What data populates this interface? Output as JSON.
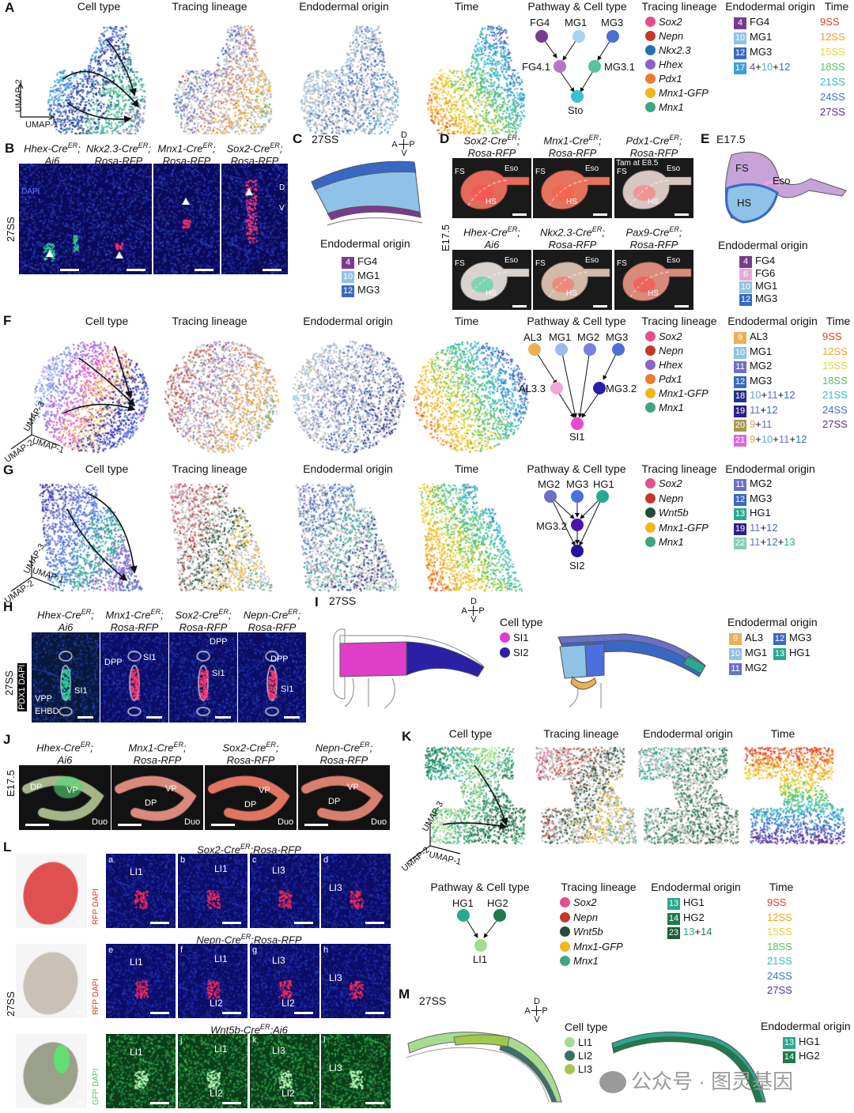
{
  "panels": {
    "A": "A",
    "B": "B",
    "C": "C",
    "D": "D",
    "E": "E",
    "F": "F",
    "G": "G",
    "H": "H",
    "I": "I",
    "J": "J",
    "K": "K",
    "L": "L",
    "M": "M"
  },
  "umap_titles": {
    "cell_type": "Cell type",
    "tracing_lineage": "Tracing lineage",
    "endodermal_origin": "Endodermal origin",
    "time": "Time",
    "pathway_cell_type": "Pathway & Cell type",
    "cell_type_legend": "Cell type"
  },
  "axes": {
    "umap1": "UMAP-1",
    "umap2": "UMAP-2",
    "umap3": "UMAP-3"
  },
  "time_labels": [
    "9SS",
    "12SS",
    "15SS",
    "18SS",
    "21SS",
    "24SS",
    "27SS"
  ],
  "time_colors": [
    "#e0402a",
    "#f1a21e",
    "#e9d53a",
    "#5bc25c",
    "#36b8c7",
    "#3c6fd0",
    "#5a2c9a"
  ],
  "A": {
    "pathway": {
      "nodes": [
        "FG4",
        "MG1",
        "MG3",
        "FG4.1",
        "MG3.1",
        "Sto"
      ]
    },
    "tracing": [
      {
        "label": "Sox2",
        "color": "#e0508e"
      },
      {
        "label": "Nepn",
        "color": "#c0392b"
      },
      {
        "label": "Nkx2.3",
        "color": "#2370b6"
      },
      {
        "label": "Hhex",
        "color": "#8a63c9"
      },
      {
        "label": "Pdx1",
        "color": "#ec7c2c"
      },
      {
        "label": "Mnx1-GFP",
        "color": "#f2b51a"
      },
      {
        "label": "Mnx1",
        "color": "#3fa582"
      }
    ],
    "origin": [
      {
        "num": "4",
        "label": "FG4",
        "color": "#7a3b8d"
      },
      {
        "num": "10",
        "label": "MG1",
        "color": "#8fc2e7"
      },
      {
        "num": "12",
        "label": "MG3",
        "color": "#3968c3"
      },
      {
        "num": "17",
        "label_parts": [
          "4",
          "+",
          "10",
          "+",
          "12"
        ],
        "color": "#3b9fd6"
      }
    ]
  },
  "B": {
    "titles": [
      {
        "l1": "Hhex-Cre",
        "sup": "ER",
        "l1b": ";",
        "l2": "Ai6"
      },
      {
        "l1": "Nkx2.3-Cre",
        "sup": "ER",
        "l1b": ";",
        "l2": "Rosa-RFP"
      },
      {
        "l1": "Mnx1-Cre",
        "sup": "ER",
        "l1b": ";",
        "l2": "Rosa-RFP"
      },
      {
        "l1": "Sox2-Cre",
        "sup": "ER",
        "l1b": ";",
        "l2": "Rosa-RFP"
      }
    ],
    "stage": "27SS",
    "dapi": "DAPI",
    "d": "D",
    "v": "V"
  },
  "C": {
    "stage": "27SS",
    "legend_title": "Endodermal origin",
    "origin": [
      {
        "num": "4",
        "label": "FG4",
        "color": "#7a3b8d"
      },
      {
        "num": "10",
        "label": "MG1",
        "color": "#8fc2e7"
      },
      {
        "num": "12",
        "label": "MG3",
        "color": "#3968c3"
      }
    ]
  },
  "orientation": {
    "d": "D",
    "v": "V",
    "a": "A",
    "p": "P"
  },
  "D": {
    "titles": [
      {
        "l1": "Sox2-Cre",
        "sup": "ER",
        "l2": "Rosa-RFP"
      },
      {
        "l1": "Mnx1-Cre",
        "sup": "ER",
        "l2": "Rosa-RFP"
      },
      {
        "l1": "Pdx1-Cre",
        "sup": "ER",
        "l2": "Rosa-RFP"
      },
      {
        "l1": "Hhex-Cre",
        "sup": "ER",
        "l2": "Ai6"
      },
      {
        "l1": "Nkx2.3-Cre",
        "sup": "ER",
        "l2": "Rosa-RFP"
      },
      {
        "l1": "Pax9-Cre",
        "sup": "ER",
        "l2": "Rosa-RFP"
      }
    ],
    "stage": "E17.5",
    "fs": "FS",
    "hs": "HS",
    "eso": "Eso",
    "tam": "Tam at E8.5"
  },
  "E": {
    "stage": "E17.5",
    "fs": "FS",
    "hs": "HS",
    "eso": "Eso",
    "legend_title": "Endodermal origin",
    "origin": [
      {
        "num": "4",
        "label": "FG4",
        "color": "#7a3b8d"
      },
      {
        "num": "6",
        "label": "FG6",
        "color": "#e8a9d6"
      },
      {
        "num": "10",
        "label": "MG1",
        "color": "#8fc2e7"
      },
      {
        "num": "12",
        "label": "MG3",
        "color": "#3968c3"
      }
    ]
  },
  "F": {
    "pathway": {
      "nodes": [
        "AL3",
        "MG1",
        "MG2",
        "MG3",
        "AL3.3",
        "MG3.2",
        "SI1"
      ]
    },
    "tracing": [
      {
        "label": "Sox2",
        "color": "#e0508e"
      },
      {
        "label": "Nepn",
        "color": "#c0392b"
      },
      {
        "label": "Hhex",
        "color": "#8a63c9"
      },
      {
        "label": "Pdx1",
        "color": "#ec7c2c"
      },
      {
        "label": "Mnx1-GFP",
        "color": "#f2b51a"
      },
      {
        "label": "Mnx1",
        "color": "#3fa582"
      }
    ],
    "origin": [
      {
        "num": "9",
        "label": "AL3",
        "color": "#eab054"
      },
      {
        "num": "10",
        "label": "MG1",
        "color": "#8fc2e7"
      },
      {
        "num": "11",
        "label": "MG2",
        "color": "#6a6fc8"
      },
      {
        "num": "12",
        "label": "MG3",
        "color": "#3968c3"
      },
      {
        "num": "18",
        "label_parts": [
          "10",
          "+",
          "11",
          "+",
          "12"
        ],
        "color": "#23308f"
      },
      {
        "num": "19",
        "label_parts": [
          "11",
          "+",
          "12"
        ],
        "color": "#2d1f8a"
      },
      {
        "num": "20",
        "label_parts": [
          "9",
          "+",
          "11"
        ],
        "color": "#a89a4f"
      },
      {
        "num": "21",
        "label_parts": [
          "9",
          "+",
          "10",
          "+",
          "11",
          "+",
          "12"
        ],
        "color": "#d968d8"
      }
    ]
  },
  "G": {
    "pathway": {
      "nodes": [
        "MG2",
        "MG3",
        "HG1",
        "MG3.2",
        "SI2"
      ]
    },
    "tracing": [
      {
        "label": "Sox2",
        "color": "#e0508e"
      },
      {
        "label": "Nepn",
        "color": "#c0392b"
      },
      {
        "label": "Wnt5b",
        "color": "#234d3a"
      },
      {
        "label": "Mnx1-GFP",
        "color": "#f2b51a"
      },
      {
        "label": "Mnx1",
        "color": "#3fa582"
      }
    ],
    "origin": [
      {
        "num": "11",
        "label": "MG2",
        "color": "#6a6fc8"
      },
      {
        "num": "12",
        "label": "MG3",
        "color": "#3968c3"
      },
      {
        "num": "13",
        "label": "HG1",
        "color": "#27a98f"
      },
      {
        "num": "19",
        "label_parts": [
          "11",
          "+",
          "12"
        ],
        "color": "#2d1f8a"
      },
      {
        "num": "22",
        "label_parts": [
          "11",
          "+",
          "12",
          "+",
          "13"
        ],
        "color": "#7fd0b8"
      }
    ]
  },
  "H": {
    "titles": [
      {
        "l1": "Hhex-Cre",
        "sup": "ER",
        "l2": "Ai6"
      },
      {
        "l1": "Mnx1-Cre",
        "sup": "ER",
        "l2": "Rosa-RFP"
      },
      {
        "l1": "Sox2-Cre",
        "sup": "ER",
        "l2": "Rosa-RFP"
      },
      {
        "l1": "Nepn-Cre",
        "sup": "ER",
        "l2": "Rosa-RFP"
      }
    ],
    "stage": "27SS",
    "stain": "PDX1 DAPI",
    "labels": {
      "vpp": "VPP",
      "ehbd": "EHBD",
      "si1": "SI1",
      "dpp": "DPP"
    }
  },
  "I": {
    "stage": "27SS",
    "celltype_title": "Cell type",
    "celltype": [
      {
        "label": "SI1",
        "color": "#e03ec8"
      },
      {
        "label": "SI2",
        "color": "#2a1fa5"
      }
    ],
    "legend_title": "Endodermal origin",
    "origin": [
      {
        "num": "9",
        "label": "AL3",
        "color": "#eab054"
      },
      {
        "num": "12",
        "label": "MG3",
        "color": "#3968c3"
      },
      {
        "num": "10",
        "label": "MG1",
        "color": "#8fc2e7"
      },
      {
        "num": "13",
        "label": "HG1",
        "color": "#27a98f"
      },
      {
        "num": "11",
        "label": "MG2",
        "color": "#6a6fc8"
      }
    ]
  },
  "J": {
    "titles": [
      {
        "l1": "Hhex-Cre",
        "sup": "ER",
        "l2": "Ai6"
      },
      {
        "l1": "Mnx1-Cre",
        "sup": "ER",
        "l2": "Rosa-RFP"
      },
      {
        "l1": "Sox2-Cre",
        "sup": "ER",
        "l2": "Rosa-RFP"
      },
      {
        "l1": "Nepn-Cre",
        "sup": "ER",
        "l2": "Rosa-RFP"
      }
    ],
    "stage": "E17.5",
    "dp": "DP",
    "vp": "VP",
    "duo": "Duo"
  },
  "K": {
    "pathway": {
      "nodes": [
        "HG1",
        "HG2",
        "LI1"
      ]
    },
    "tracing": [
      {
        "label": "Sox2",
        "color": "#e0508e"
      },
      {
        "label": "Nepn",
        "color": "#c0392b"
      },
      {
        "label": "Wnt5b",
        "color": "#234d3a"
      },
      {
        "label": "Mnx1-GFP",
        "color": "#f2b51a"
      },
      {
        "label": "Mnx1",
        "color": "#3fa582"
      }
    ],
    "origin": [
      {
        "num": "13",
        "label": "HG1",
        "color": "#27a98f"
      },
      {
        "num": "14",
        "label": "HG2",
        "color": "#1e7a4c"
      },
      {
        "num": "23",
        "label_parts": [
          "13",
          "+",
          "14"
        ],
        "color": "#1c5c3b"
      }
    ]
  },
  "L": {
    "rows": [
      {
        "title_pre": "Sox2-Cre",
        "sup": "ER",
        "title_post": ";Rosa-RFP",
        "stain": "RFP DAPI",
        "letters": [
          "a",
          "b",
          "c",
          "d"
        ],
        "marks": [
          "LI1",
          "LI1",
          "LI3",
          "LI3"
        ]
      },
      {
        "title_pre": "Nepn-Cre",
        "sup": "ER",
        "title_post": ";Rosa-RFP",
        "stain": "RFP DAPI",
        "letters": [
          "e",
          "f",
          "g",
          "h"
        ],
        "marks": [
          "LI1",
          "LI1",
          "LI3",
          "LI3"
        ],
        "marks2": [
          "",
          "LI2",
          "LI2",
          ""
        ]
      },
      {
        "title_pre": "Wnt5b-Cre",
        "sup": "ER",
        "title_post": ";Ai6",
        "stain": "GFP DAPI",
        "letters": [
          "i",
          "j",
          "k",
          "l"
        ],
        "marks": [
          "LI1",
          "LI1",
          "LI3",
          "LI3"
        ],
        "marks2": [
          "",
          "LI2",
          "LI2",
          ""
        ]
      }
    ],
    "stage": "27SS"
  },
  "M": {
    "stage": "27SS",
    "celltype_title": "Cell type",
    "celltype": [
      {
        "label": "LI1",
        "color": "#a6dc8f"
      },
      {
        "label": "LI2",
        "color": "#3b6f6a"
      },
      {
        "label": "LI3",
        "color": "#a3c84a"
      }
    ],
    "legend_title": "Endodermal origin",
    "origin": [
      {
        "num": "13",
        "label": "HG1",
        "color": "#27a98f"
      },
      {
        "num": "14",
        "label": "HG2",
        "color": "#1e7a4c"
      }
    ],
    "watermark": "公众号 · 图灵基因"
  }
}
